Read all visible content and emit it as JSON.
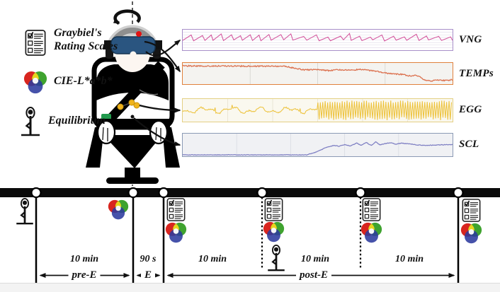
{
  "figure": {
    "legend": {
      "items": [
        {
          "name": "graybiel-rating-scales",
          "line1": "Graybiel's",
          "line2": "Rating Scales",
          "icon": "checklist-icon"
        },
        {
          "name": "cie-lab",
          "line1": "CIE-L*a*b*",
          "line2": "",
          "icon": "color-wheel-icon"
        },
        {
          "name": "equilibrium",
          "line1": "Equilibrium",
          "line2": "",
          "icon": "balance-pose-icon"
        }
      ]
    },
    "apparatus": {
      "subject": "participant seated in rotating chair",
      "rotation": "yaw axis (dashed line with circular arrow)",
      "wearables": [
        "vr-goggles",
        "headphones",
        "forehead-electrode-red",
        "seatbelt",
        "abdominal-egg-electrodes-yellow",
        "wrist-electrode-green"
      ]
    }
  },
  "chart_data": [
    {
      "id": "vng",
      "label": "VNG",
      "type": "line",
      "pattern": "sawtooth",
      "seed": 11,
      "border": "#a88fc9",
      "stroke": "#d4569e",
      "bg": "#ffffff",
      "grid": "horizontal-8",
      "gridColor": "#ddd8e6",
      "width": 1.1,
      "params": {
        "teeth": 25,
        "base": 0.52,
        "amp": 0.34
      },
      "description": "video-nystagmography trace: regular sawtooth nystagmus beats across whole recording"
    },
    {
      "id": "temps",
      "label": "TEMPs",
      "type": "line",
      "pattern": "anchors",
      "seed": 23,
      "border": "#e0813d",
      "stroke": "#dc7250",
      "bg": "#f4f3f0",
      "grid": "vertical-4",
      "gridColor": "#d8d6d1",
      "width": 1.3,
      "noise": 0.028,
      "anchors": [
        [
          0,
          0.14
        ],
        [
          0.38,
          0.16
        ],
        [
          0.42,
          0.26
        ],
        [
          0.45,
          0.33
        ],
        [
          0.5,
          0.31
        ],
        [
          0.54,
          0.36
        ],
        [
          0.58,
          0.32
        ],
        [
          0.62,
          0.34
        ],
        [
          0.66,
          0.31
        ],
        [
          0.7,
          0.36
        ],
        [
          0.73,
          0.42
        ],
        [
          0.76,
          0.5
        ],
        [
          0.79,
          0.52
        ],
        [
          0.82,
          0.55
        ],
        [
          0.845,
          0.62
        ],
        [
          0.865,
          0.58
        ],
        [
          0.88,
          0.66
        ],
        [
          0.895,
          0.8
        ],
        [
          0.92,
          0.85
        ],
        [
          0.95,
          0.8
        ],
        [
          0.97,
          0.83
        ],
        [
          1,
          0.79
        ]
      ],
      "description": "skin temperature: flat high baseline then stepped decline with steep drop near end"
    },
    {
      "id": "egg",
      "label": "EGG",
      "type": "line",
      "pattern": "burst",
      "seed": 37,
      "border": "#e4d084",
      "stroke": "#edc23a",
      "bg": "#faf8ef",
      "grid": "vertical-6",
      "gridColor": "#e8e4d2",
      "width": 1.0,
      "params": {
        "calm_end": 0.5
      },
      "description": "electrogastrogram: low-amplitude waves in first half, dense high-amplitude oscillation bursts in second half"
    },
    {
      "id": "scl",
      "label": "SCL",
      "type": "line",
      "pattern": "anchors",
      "seed": 51,
      "border": "#8b9ab5",
      "stroke": "#7e7fc3",
      "bg": "#f0f1f4",
      "grid": "vertical-5",
      "gridColor": "#dadde4",
      "width": 1.2,
      "noise": 0.012,
      "anchors": [
        [
          0,
          0.94
        ],
        [
          0.46,
          0.94
        ],
        [
          0.5,
          0.79
        ],
        [
          0.53,
          0.62
        ],
        [
          0.56,
          0.52
        ],
        [
          0.58,
          0.56
        ],
        [
          0.6,
          0.48
        ],
        [
          0.62,
          0.55
        ],
        [
          0.645,
          0.42
        ],
        [
          0.66,
          0.52
        ],
        [
          0.68,
          0.4
        ],
        [
          0.7,
          0.52
        ],
        [
          0.715,
          0.36
        ],
        [
          0.73,
          0.5
        ],
        [
          0.75,
          0.44
        ],
        [
          0.77,
          0.4
        ],
        [
          0.79,
          0.47
        ],
        [
          0.81,
          0.42
        ],
        [
          0.84,
          0.45
        ],
        [
          0.87,
          0.5
        ],
        [
          0.9,
          0.52
        ],
        [
          0.95,
          0.5
        ],
        [
          1,
          0.48
        ]
      ],
      "description": "skin conductance level: flat baseline then rise with bumpy plateau in second half"
    }
  ],
  "timeline": {
    "durations": [
      "10 min",
      "90 s",
      "10 min",
      "10 min",
      "10 min"
    ],
    "phases": [
      "pre-E",
      "E",
      "post-E"
    ],
    "events": [
      {
        "measures": [
          "balance-pose-icon"
        ]
      },
      {
        "measures": [
          "color-wheel-icon"
        ]
      },
      {
        "measures": [
          "checklist-icon",
          "color-wheel-icon"
        ]
      },
      {
        "measures": [
          "checklist-icon",
          "color-wheel-icon",
          "balance-pose-icon"
        ]
      },
      {
        "measures": [
          "checklist-icon",
          "color-wheel-icon"
        ]
      },
      {
        "measures": [
          "checklist-icon",
          "color-wheel-icon"
        ]
      }
    ]
  }
}
